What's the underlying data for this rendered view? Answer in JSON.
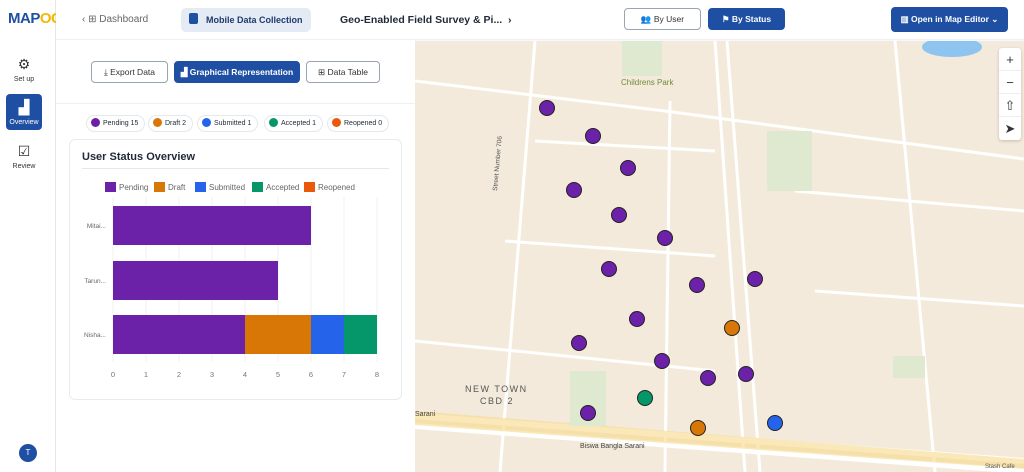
{
  "app": {
    "logo": "MAPOG"
  },
  "sidebar": {
    "items": [
      {
        "label": "Set up",
        "icon": "gear-icon"
      },
      {
        "label": "Overview",
        "icon": "bar-chart-icon",
        "active": true
      },
      {
        "label": "Review",
        "icon": "checkbox-icon"
      }
    ],
    "avatar": "T"
  },
  "breadcrumb": {
    "dashboard": "Dashboard",
    "module": "Mobile Data Collection",
    "project": "Geo-Enabled Field Survey & Pi..."
  },
  "toolbar": {
    "by_user": "By User",
    "by_status": "By Status",
    "open_editor": "Open in Map Editor"
  },
  "panel": {
    "export": "Export Data",
    "graph": "Graphical Representation",
    "table": "Data Table"
  },
  "status_chips": [
    {
      "label": "Pending 15",
      "color": "#6b21a8"
    },
    {
      "label": "Draft 2",
      "color": "#d97706"
    },
    {
      "label": "Submitted 1",
      "color": "#2563eb"
    },
    {
      "label": "Accepted 1",
      "color": "#059669"
    },
    {
      "label": "Reopened 0",
      "color": "#ea580c"
    }
  ],
  "chart_data": {
    "type": "bar",
    "orientation": "horizontal",
    "stacked": true,
    "title": "User Status Overview",
    "categories": [
      "Mitai...",
      "Tarun...",
      "Nisha..."
    ],
    "series": [
      {
        "name": "Pending",
        "color": "#6b21a8",
        "values": [
          6,
          5,
          4
        ]
      },
      {
        "name": "Draft",
        "color": "#d97706",
        "values": [
          0,
          0,
          2
        ]
      },
      {
        "name": "Submitted",
        "color": "#2563eb",
        "values": [
          0,
          0,
          1
        ]
      },
      {
        "name": "Accepted",
        "color": "#059669",
        "values": [
          0,
          0,
          1
        ]
      },
      {
        "name": "Reopened",
        "color": "#ea580c",
        "values": [
          0,
          0,
          0
        ]
      }
    ],
    "xlim": [
      0,
      8
    ],
    "xticks": [
      "0",
      "1",
      "2",
      "3",
      "4",
      "5",
      "6",
      "7",
      "8"
    ],
    "grid": true,
    "legend": "top"
  },
  "map": {
    "labels": {
      "park": "Childrens Park",
      "area1": "NEW TOWN",
      "area2": "CBD 2",
      "street": "Street Number 706",
      "road": "Biswa Bangla Sarani",
      "road2": "Sarani",
      "cafe": "Stash Cafe"
    },
    "markers": [
      "Pending",
      "Pending",
      "Pending",
      "Pending",
      "Pending",
      "Pending",
      "Pending",
      "Pending",
      "Pending",
      "Pending",
      "Pending",
      "Pending",
      "Pending",
      "Pending",
      "Pending",
      "Draft",
      "Draft",
      "Accepted",
      "Submitted"
    ],
    "controls": [
      "+",
      "−",
      "⇧",
      "➤"
    ]
  }
}
